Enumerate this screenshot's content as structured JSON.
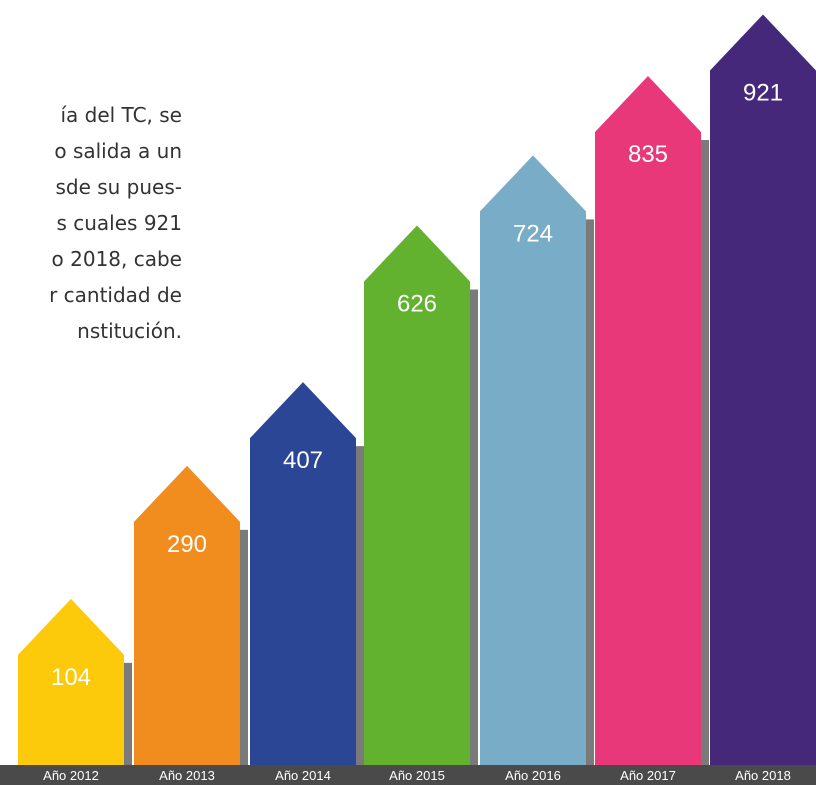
{
  "paragraph": [
    "ía del TC, se",
    "o salida a un",
    "sde su pues-",
    "s cuales 921",
    "o 2018, cabe",
    "r cantidad de",
    "nstitución."
  ],
  "chart_data": {
    "type": "arrow-bar",
    "categories": [
      "Año 2012",
      "Año 2013",
      "Año 2014",
      "Año 2015",
      "Año 2016",
      "Año 2017",
      "Año 2018"
    ],
    "values": [
      104,
      290,
      407,
      626,
      724,
      835,
      921
    ],
    "colors": [
      "#fdc90b",
      "#f18c1f",
      "#2c4696",
      "#62b22f",
      "#79acc7",
      "#e8387a",
      "#45287a"
    ],
    "ylim": [
      -50,
      1000
    ]
  }
}
